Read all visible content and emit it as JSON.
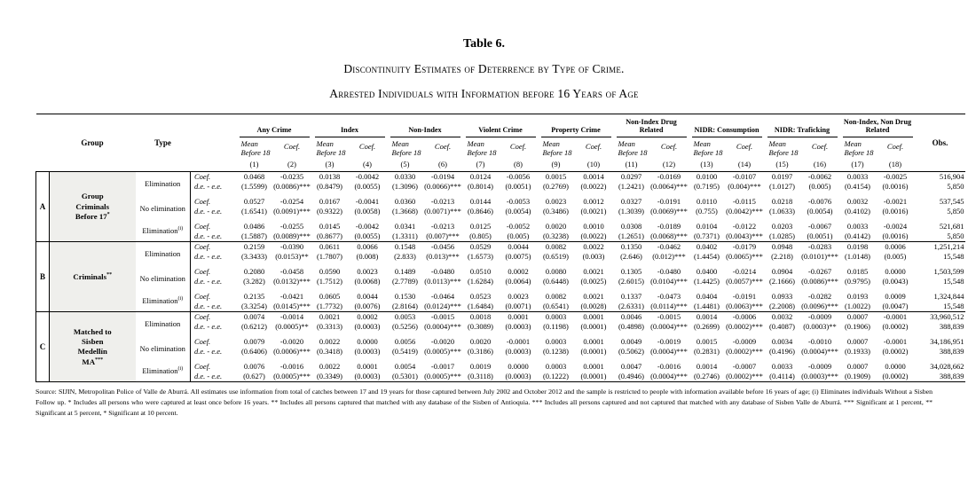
{
  "page": {
    "title": "Table 6.",
    "subtitle1": "Discontinuity Estimates of Deterrence by Type of Crime.",
    "subtitle2": "Arrested Individuals with Information before 16 Years of Age"
  },
  "colors": {
    "group_cell_bg": "#efefec",
    "border": "#000000"
  },
  "table": {
    "header": {
      "group_col": "Group",
      "type_col": "Type",
      "obs_col": "Obs.",
      "mean_sub": "Mean Before 18",
      "coef_sub": "Coef.",
      "crime_groups": [
        {
          "label": "Any Crime",
          "nums": [
            "(1)",
            "(2)"
          ]
        },
        {
          "label": "Index",
          "nums": [
            "(3)",
            "(4)"
          ]
        },
        {
          "label": "Non-Index",
          "nums": [
            "(5)",
            "(6)"
          ]
        },
        {
          "label": "Violent Crime",
          "nums": [
            "(7)",
            "(8)"
          ]
        },
        {
          "label": "Property Crime",
          "nums": [
            "(9)",
            "(10)"
          ]
        },
        {
          "label": "Non-Index Drug Related",
          "nums": [
            "(11)",
            "(12)"
          ]
        },
        {
          "label": "NIDR: Consumption",
          "nums": [
            "(13)",
            "(14)"
          ]
        },
        {
          "label": "NIDR: Traficking",
          "nums": [
            "(15)",
            "(16)"
          ]
        },
        {
          "label": "Non-Index, Non Drug Related",
          "nums": [
            "(17)",
            "(18)"
          ]
        }
      ]
    },
    "row_labels": {
      "coef": "Coef.",
      "se": "d.e. - e.e."
    },
    "panels": [
      {
        "letter": "A",
        "group_lines": [
          "Group",
          "Criminals",
          "Before 17"
        ],
        "group_sup": "*",
        "rows": [
          {
            "type": "Elimination",
            "type_sup": "",
            "coef": [
              "0.0468",
              "-0.0235",
              "0.0138",
              "-0.0042",
              "0.0330",
              "-0.0194",
              "0.0124",
              "-0.0056",
              "0.0015",
              "0.0014",
              "0.0297",
              "-0.0169",
              "0.0100",
              "-0.0107",
              "0.0197",
              "-0.0062",
              "0.0033",
              "-0.0025"
            ],
            "obs": "516,904",
            "se": [
              "(1.5599)",
              "(0.0086)***",
              "(0.8479)",
              "(0.0055)",
              "(1.3096)",
              "(0.0066)***",
              "(0.8014)",
              "(0.0051)",
              "(0.2769)",
              "(0.0022)",
              "(1.2421)",
              "(0.0064)***",
              "(0.7195)",
              "(0.004)***",
              "(1.0127)",
              "(0.005)",
              "(0.4154)",
              "(0.0016)"
            ],
            "obs2": "5,850"
          },
          {
            "type": "No elimination",
            "type_sup": "",
            "coef": [
              "0.0527",
              "-0.0254",
              "0.0167",
              "-0.0041",
              "0.0360",
              "-0.0213",
              "0.0144",
              "-0.0053",
              "0.0023",
              "0.0012",
              "0.0327",
              "-0.0191",
              "0.0110",
              "-0.0115",
              "0.0218",
              "-0.0076",
              "0.0032",
              "-0.0021"
            ],
            "obs": "537,545",
            "se": [
              "(1.6541)",
              "(0.0091)***",
              "(0.9322)",
              "(0.0058)",
              "(1.3668)",
              "(0.0071)***",
              "(0.8646)",
              "(0.0054)",
              "(0.3486)",
              "(0.0021)",
              "(1.3039)",
              "(0.0069)***",
              "(0.755)",
              "(0.0042)***",
              "(1.0633)",
              "(0.0054)",
              "(0.4102)",
              "(0.0016)"
            ],
            "obs2": "5,850"
          },
          {
            "type": "Elimination",
            "type_sup": "(i)",
            "coef": [
              "0.0486",
              "-0.0255",
              "0.0145",
              "-0.0042",
              "0.0341",
              "-0.0213",
              "0.0125",
              "-0.0052",
              "0.0020",
              "0.0010",
              "0.0308",
              "-0.0189",
              "0.0104",
              "-0.0122",
              "0.0203",
              "-0.0067",
              "0.0033",
              "-0.0024"
            ],
            "obs": "521,681",
            "se": [
              "(1.5887)",
              "(0.0089)***",
              "(0.8677)",
              "(0.0055)",
              "(1.3311)",
              "(0.007)***",
              "(0.805)",
              "(0.005)",
              "(0.3238)",
              "(0.0022)",
              "(1.2651)",
              "(0.0068)***",
              "(0.7371)",
              "(0.0043)***",
              "(1.0285)",
              "(0.0051)",
              "(0.4142)",
              "(0.0016)"
            ],
            "obs2": "5,850"
          }
        ]
      },
      {
        "letter": "B",
        "group_lines": [
          "Criminals"
        ],
        "group_sup": "**",
        "rows": [
          {
            "type": "Elimination",
            "type_sup": "",
            "coef": [
              "0.2159",
              "-0.0390",
              "0.0611",
              "0.0066",
              "0.1548",
              "-0.0456",
              "0.0529",
              "0.0044",
              "0.0082",
              "0.0022",
              "0.1350",
              "-0.0462",
              "0.0402",
              "-0.0179",
              "0.0948",
              "-0.0283",
              "0.0198",
              "0.0006"
            ],
            "obs": "1,251,214",
            "se": [
              "(3.3433)",
              "(0.0153)**",
              "(1.7807)",
              "(0.008)",
              "(2.833)",
              "(0.013)***",
              "(1.6573)",
              "(0.0075)",
              "(0.6519)",
              "(0.003)",
              "(2.646)",
              "(0.012)***",
              "(1.4454)",
              "(0.0065)***",
              "(2.218)",
              "(0.0101)***",
              "(1.0148)",
              "(0.005)"
            ],
            "obs2": "15,548"
          },
          {
            "type": "No elimination",
            "type_sup": "",
            "coef": [
              "0.2080",
              "-0.0458",
              "0.0590",
              "0.0023",
              "0.1489",
              "-0.0480",
              "0.0510",
              "0.0002",
              "0.0080",
              "0.0021",
              "0.1305",
              "-0.0480",
              "0.0400",
              "-0.0214",
              "0.0904",
              "-0.0267",
              "0.0185",
              "0.0000"
            ],
            "obs": "1,503,599",
            "se": [
              "(3.282)",
              "(0.0132)***",
              "(1.7512)",
              "(0.0068)",
              "(2.7789)",
              "(0.0113)***",
              "(1.6284)",
              "(0.0064)",
              "(0.6448)",
              "(0.0025)",
              "(2.6015)",
              "(0.0104)***",
              "(1.4425)",
              "(0.0057)***",
              "(2.1666)",
              "(0.0086)***",
              "(0.9795)",
              "(0.0043)"
            ],
            "obs2": "15,548"
          },
          {
            "type": "Elimination",
            "type_sup": "(i)",
            "coef": [
              "0.2135",
              "-0.0421",
              "0.0605",
              "0.0044",
              "0.1530",
              "-0.0464",
              "0.0523",
              "0.0023",
              "0.0082",
              "0.0021",
              "0.1337",
              "-0.0473",
              "0.0404",
              "-0.0191",
              "0.0933",
              "-0.0282",
              "0.0193",
              "0.0009"
            ],
            "obs": "1,324,844",
            "se": [
              "(3.3254)",
              "(0.0145)***",
              "(1.7732)",
              "(0.0076)",
              "(2.8164)",
              "(0.0124)***",
              "(1.6484)",
              "(0.0071)",
              "(0.6541)",
              "(0.0028)",
              "(2.6331)",
              "(0.0114)***",
              "(1.4481)",
              "(0.0063)***",
              "(2.2008)",
              "(0.0096)***",
              "(1.0022)",
              "(0.0047)"
            ],
            "obs2": "15,548"
          }
        ]
      },
      {
        "letter": "C",
        "group_lines": [
          "Matched to",
          "Sisben",
          "Medellín",
          "MA"
        ],
        "group_sup": "***",
        "rows": [
          {
            "type": "Elimination",
            "type_sup": "",
            "coef": [
              "0.0074",
              "-0.0014",
              "0.0021",
              "0.0002",
              "0.0053",
              "-0.0015",
              "0.0018",
              "0.0001",
              "0.0003",
              "0.0001",
              "0.0046",
              "-0.0015",
              "0.0014",
              "-0.0006",
              "0.0032",
              "-0.0009",
              "0.0007",
              "-0.0001"
            ],
            "obs": "33,960,512",
            "se": [
              "(0.6212)",
              "(0.0005)**",
              "(0.3313)",
              "(0.0003)",
              "(0.5256)",
              "(0.0004)***",
              "(0.3089)",
              "(0.0003)",
              "(0.1198)",
              "(0.0001)",
              "(0.4898)",
              "(0.0004)***",
              "(0.2699)",
              "(0.0002)***",
              "(0.4087)",
              "(0.0003)**",
              "(0.1906)",
              "(0.0002)"
            ],
            "obs2": "388,839"
          },
          {
            "type": "No elimination",
            "type_sup": "",
            "coef": [
              "0.0079",
              "-0.0020",
              "0.0022",
              "0.0000",
              "0.0056",
              "-0.0020",
              "0.0020",
              "-0.0001",
              "0.0003",
              "0.0001",
              "0.0049",
              "-0.0019",
              "0.0015",
              "-0.0009",
              "0.0034",
              "-0.0010",
              "0.0007",
              "-0.0001"
            ],
            "obs": "34,186,951",
            "se": [
              "(0.6406)",
              "(0.0006)***",
              "(0.3418)",
              "(0.0003)",
              "(0.5419)",
              "(0.0005)***",
              "(0.3186)",
              "(0.0003)",
              "(0.1238)",
              "(0.0001)",
              "(0.5062)",
              "(0.0004)***",
              "(0.2831)",
              "(0.0002)***",
              "(0.4196)",
              "(0.0004)***",
              "(0.1933)",
              "(0.0002)"
            ],
            "obs2": "388,839"
          },
          {
            "type": "Elimination",
            "type_sup": "(i)",
            "coef": [
              "0.0076",
              "-0.0016",
              "0.0022",
              "0.0001",
              "0.0054",
              "-0.0017",
              "0.0019",
              "0.0000",
              "0.0003",
              "0.0001",
              "0.0047",
              "-0.0016",
              "0.0014",
              "-0.0007",
              "0.0033",
              "-0.0009",
              "0.0007",
              "0.0000"
            ],
            "obs": "34,028,662",
            "se": [
              "(0.627)",
              "(0.0005)***",
              "(0.3349)",
              "(0.0003)",
              "(0.5301)",
              "(0.0005)***",
              "(0.3118)",
              "(0.0003)",
              "(0.1222)",
              "(0.0001)",
              "(0.4946)",
              "(0.0004)***",
              "(0.2746)",
              "(0.0002)***",
              "(0.4114)",
              "(0.0003)***",
              "(0.1909)",
              "(0.0002)"
            ],
            "obs2": "388,839"
          }
        ]
      }
    ],
    "footnote": "Source: SIJIN, Metropolitan Police of Valle de Aburrá. All estimates use information from total of catches between 17 and 19 years for those captured between July 2002 and October 2012 and the sample is restricted to people with information available before 16 years of age; (i) Eliminates individuals Without a Sisben Follow up. * Includes all persons who were captured at least once before 16 years. ** Includes all persons captured that matched with any database of the Sisben of Antioquia. *** Includes all persons captured and not captured that matched with any database of Sisben Valle de Aburrá. *** Significant at 1 percent, ** Significant at 5 percent, * Significant at 10 percent."
  }
}
